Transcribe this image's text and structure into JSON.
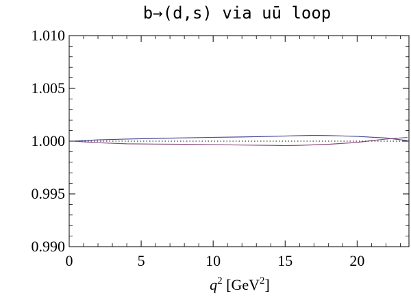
{
  "chart_data": {
    "type": "line",
    "title": "b→(d,s) via uū loop",
    "xlabel": {
      "var": "q",
      "var_sup": "2",
      "unit_pre": " [GeV",
      "unit_sup": "2",
      "unit_post": "]"
    },
    "ylabel": "",
    "xlim": [
      0,
      23.6
    ],
    "ylim": [
      0.99,
      1.01
    ],
    "x_ticks": [
      0,
      5,
      10,
      15,
      20
    ],
    "x_tick_labels": [
      "0",
      "5",
      "10",
      "15",
      "20"
    ],
    "y_ticks": [
      0.99,
      0.995,
      1.0,
      1.005,
      1.01
    ],
    "y_tick_labels": [
      "0.990",
      "0.995",
      "1.000",
      "1.005",
      "1.010"
    ],
    "grid": false,
    "series": [
      {
        "color": "#4a4a9c",
        "style": "solid",
        "x": [
          0.3,
          2,
          4,
          6,
          8,
          10,
          12,
          14,
          16,
          17,
          18,
          20,
          22,
          23.5
        ],
        "y": [
          1.0,
          1.00012,
          1.0002,
          1.00026,
          1.00031,
          1.00036,
          1.0004,
          1.00045,
          1.00052,
          1.00055,
          1.00053,
          1.00045,
          1.0003,
          1.00005
        ]
      },
      {
        "color": "#8a4a7c",
        "style": "solid",
        "x": [
          0.3,
          2,
          4,
          6,
          8,
          10,
          12,
          14,
          15,
          16,
          18,
          20,
          21,
          22,
          23.5
        ],
        "y": [
          1.0,
          0.99985,
          0.99975,
          0.99972,
          0.9997,
          0.99967,
          0.99963,
          0.9996,
          0.99958,
          0.9996,
          0.9997,
          0.99988,
          1.00005,
          1.0002,
          1.00035
        ]
      },
      {
        "color": "#333333",
        "style": "dotted",
        "x": [
          0,
          23.6
        ],
        "y": [
          1.0,
          1.0
        ]
      }
    ]
  }
}
